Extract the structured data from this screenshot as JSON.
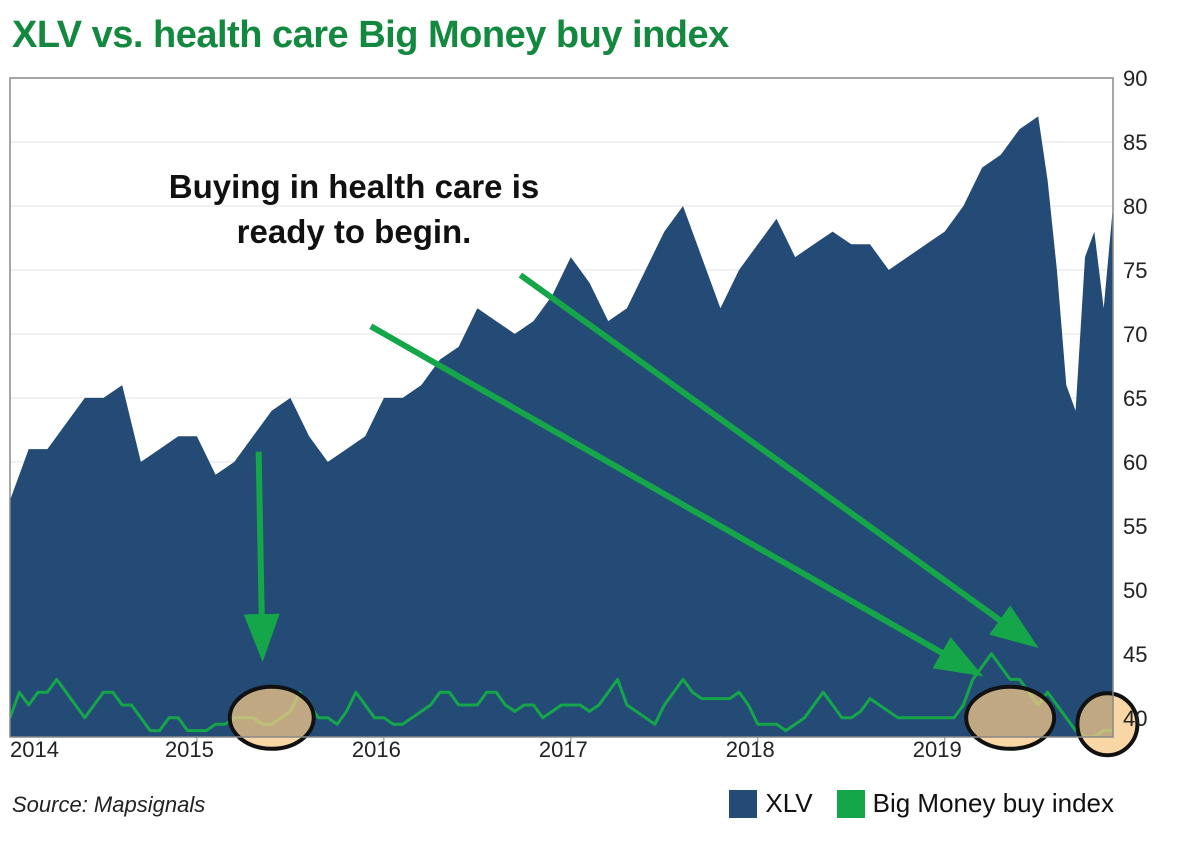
{
  "title": "XLV vs. health care Big Money buy index",
  "source": "Source: Mapsignals",
  "annotation": [
    "Buying in health care is",
    "ready to begin."
  ],
  "colors": {
    "xlv": "#234b75",
    "index": "#16a64a",
    "highlight": "#f5c887",
    "title": "#13883f"
  },
  "legend": [
    {
      "label": "XLV",
      "color": "#234b75"
    },
    {
      "label": "Big Money buy index",
      "color": "#16a64a"
    }
  ],
  "chart_data": {
    "type": "area",
    "x_tick_labels": [
      "2014",
      "2015",
      "2016",
      "2017",
      "2018",
      "2019"
    ],
    "x_ticks": [
      2014.0,
      2015.0,
      2016.0,
      2017.0,
      2018.0,
      2019.0
    ],
    "xlim": [
      2014.0,
      2019.9
    ],
    "y_tick_labels": [
      "90",
      "85",
      "80",
      "75",
      "70",
      "65",
      "60",
      "55",
      "50",
      "45",
      "40"
    ],
    "y_ticks": [
      90,
      85,
      80,
      75,
      70,
      65,
      60,
      55,
      50,
      45,
      40
    ],
    "ylim": [
      38.5,
      90
    ],
    "grid": "horizontal",
    "legend_position": "bottom-right",
    "series": [
      {
        "name": "XLV",
        "type": "area",
        "x": [
          2014.0,
          2014.1,
          2014.2,
          2014.3,
          2014.4,
          2014.5,
          2014.6,
          2014.7,
          2014.8,
          2014.9,
          2015.0,
          2015.1,
          2015.2,
          2015.3,
          2015.4,
          2015.5,
          2015.6,
          2015.7,
          2015.8,
          2015.9,
          2016.0,
          2016.1,
          2016.2,
          2016.3,
          2016.4,
          2016.5,
          2016.6,
          2016.7,
          2016.8,
          2016.9,
          2017.0,
          2017.1,
          2017.2,
          2017.3,
          2017.4,
          2017.5,
          2017.6,
          2017.7,
          2017.8,
          2017.9,
          2018.0,
          2018.1,
          2018.2,
          2018.3,
          2018.4,
          2018.5,
          2018.6,
          2018.7,
          2018.8,
          2018.9,
          2019.0,
          2019.1,
          2019.2,
          2019.3,
          2019.4,
          2019.5,
          2019.55,
          2019.6,
          2019.65,
          2019.7,
          2019.75,
          2019.8,
          2019.85,
          2019.9
        ],
        "values": [
          57,
          61,
          61,
          63,
          65,
          65,
          66,
          60,
          61,
          62,
          62,
          59,
          60,
          62,
          64,
          65,
          62,
          60,
          61,
          62,
          65,
          65,
          66,
          68,
          69,
          72,
          71,
          70,
          71,
          73,
          76,
          74,
          71,
          72,
          75,
          78,
          80,
          76,
          72,
          75,
          77,
          79,
          76,
          77,
          78,
          77,
          77,
          75,
          76,
          77,
          78,
          80,
          83,
          84,
          86,
          87,
          82,
          75,
          66,
          64,
          76,
          78,
          72,
          80
        ],
        "color": "#234b75"
      },
      {
        "name": "Big Money buy index",
        "type": "line",
        "x": [
          2014.0,
          2014.05,
          2014.1,
          2014.15,
          2014.2,
          2014.25,
          2014.3,
          2014.35,
          2014.4,
          2014.45,
          2014.5,
          2014.55,
          2014.6,
          2014.65,
          2014.7,
          2014.75,
          2014.8,
          2014.85,
          2014.9,
          2014.95,
          2015.0,
          2015.05,
          2015.1,
          2015.15,
          2015.2,
          2015.25,
          2015.3,
          2015.35,
          2015.4,
          2015.45,
          2015.5,
          2015.55,
          2015.6,
          2015.65,
          2015.7,
          2015.75,
          2015.8,
          2015.85,
          2015.9,
          2015.95,
          2016.0,
          2016.05,
          2016.1,
          2016.15,
          2016.2,
          2016.25,
          2016.3,
          2016.35,
          2016.4,
          2016.45,
          2016.5,
          2016.55,
          2016.6,
          2016.65,
          2016.7,
          2016.75,
          2016.8,
          2016.85,
          2016.9,
          2016.95,
          2017.0,
          2017.05,
          2017.1,
          2017.15,
          2017.2,
          2017.25,
          2017.3,
          2017.35,
          2017.4,
          2017.45,
          2017.5,
          2017.55,
          2017.6,
          2017.65,
          2017.7,
          2017.75,
          2017.8,
          2017.85,
          2017.9,
          2017.95,
          2018.0,
          2018.05,
          2018.1,
          2018.15,
          2018.2,
          2018.25,
          2018.3,
          2018.35,
          2018.4,
          2018.45,
          2018.5,
          2018.55,
          2018.6,
          2018.65,
          2018.7,
          2018.75,
          2018.8,
          2018.85,
          2018.9,
          2018.95,
          2019.0,
          2019.05,
          2019.1,
          2019.15,
          2019.2,
          2019.25,
          2019.3,
          2019.35,
          2019.4,
          2019.45,
          2019.5,
          2019.55,
          2019.6,
          2019.65,
          2019.7,
          2019.75,
          2019.8,
          2019.85,
          2019.9
        ],
        "values": [
          40,
          42,
          41,
          42,
          42,
          43,
          42,
          41,
          40,
          41,
          42,
          42,
          41,
          41,
          40,
          39,
          39,
          40,
          40,
          39,
          39,
          39,
          39.5,
          39.5,
          40,
          40,
          40,
          39.5,
          39.5,
          40,
          40.5,
          42,
          41,
          40,
          40,
          39.5,
          40.5,
          42,
          41,
          40,
          40,
          39.5,
          39.5,
          40,
          40.5,
          41,
          42,
          42,
          41,
          41,
          41,
          42,
          42,
          41,
          40.5,
          41,
          41,
          40,
          40.5,
          41,
          41,
          41,
          40.5,
          41,
          42,
          43,
          41,
          40.5,
          40,
          39.5,
          41,
          42,
          43,
          42,
          41.5,
          41.5,
          41.5,
          41.5,
          42,
          41,
          39.5,
          39.5,
          39.5,
          39,
          39.5,
          40,
          41,
          42,
          41,
          40,
          40,
          40.5,
          41.5,
          41,
          40.5,
          40,
          40,
          40,
          40,
          40,
          40,
          40,
          41,
          43,
          44,
          45,
          44,
          43,
          43,
          42,
          41,
          42,
          41,
          40,
          39,
          38.5,
          38.5,
          39,
          39
        ],
        "color": "#16a64a"
      }
    ]
  }
}
